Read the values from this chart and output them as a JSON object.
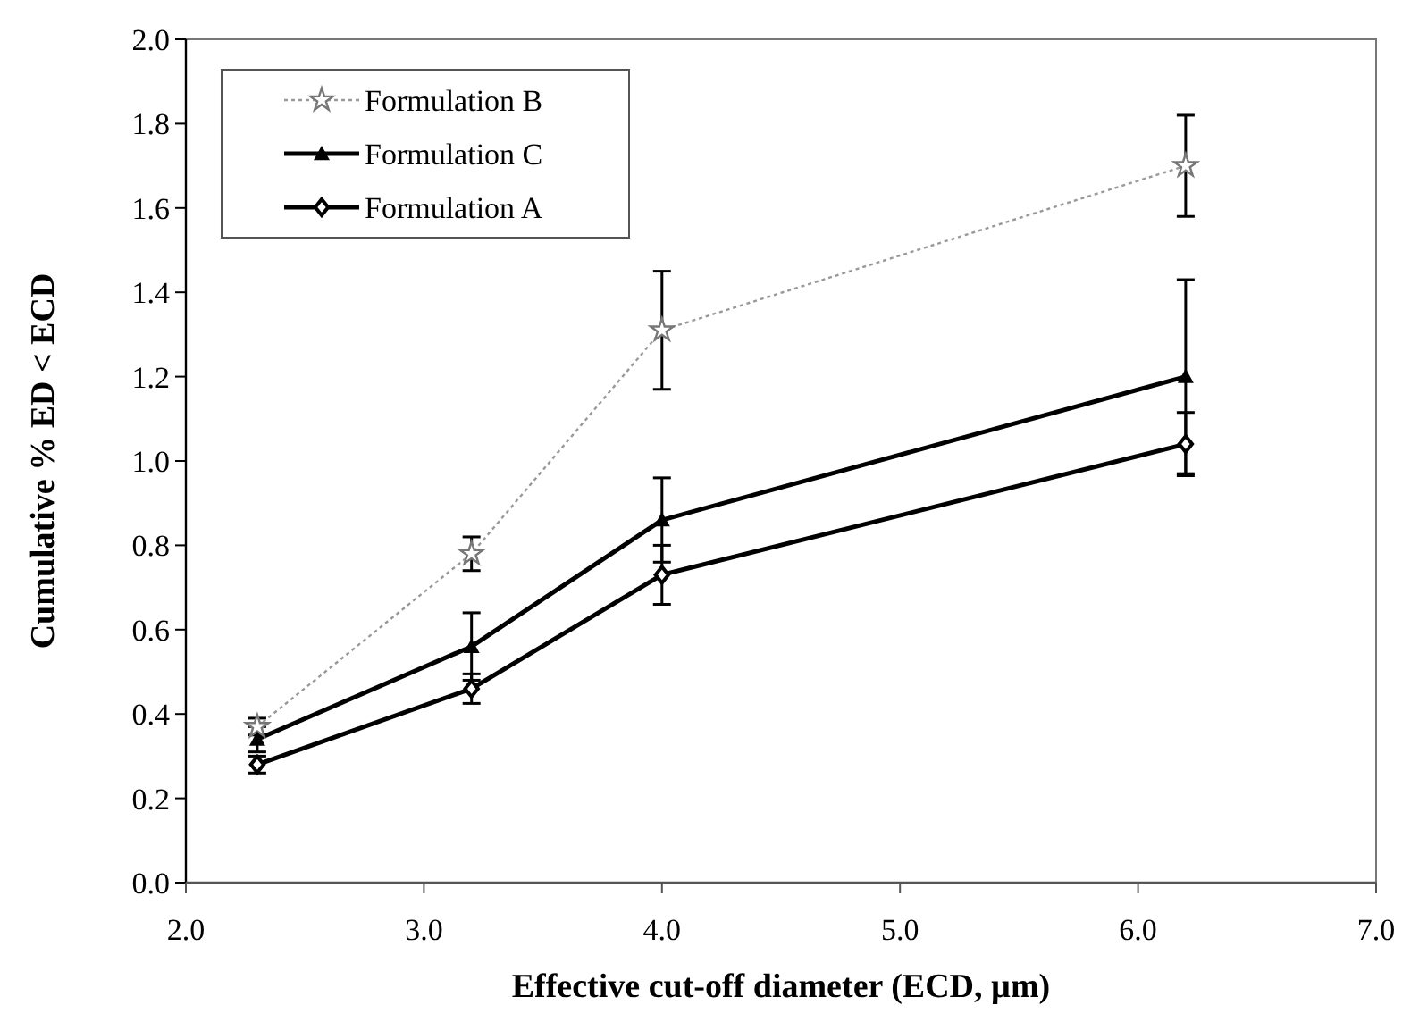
{
  "chart_data": {
    "type": "line",
    "xlabel": "Effective cut-off diameter (ECD, µm)",
    "ylabel": "Cumulative % ED < ECD",
    "x": [
      2.3,
      3.2,
      4.0,
      6.2
    ],
    "xlim": [
      2.0,
      7.0
    ],
    "xticks": [
      {
        "value": 2,
        "label": "2.0"
      },
      {
        "value": 3,
        "label": "3.0"
      },
      {
        "value": 4,
        "label": "4.0"
      },
      {
        "value": 5,
        "label": "5.0"
      },
      {
        "value": 6,
        "label": "6.0"
      },
      {
        "value": 7,
        "label": "7.0"
      }
    ],
    "ylim": [
      0,
      2.0
    ],
    "yticks": [
      {
        "value": 0,
        "label": "0.0"
      },
      {
        "value": 0.2,
        "label": "0.2"
      },
      {
        "value": 0.4,
        "label": "0.4"
      },
      {
        "value": 0.6,
        "label": "0.6"
      },
      {
        "value": 0.8,
        "label": "0.8"
      },
      {
        "value": 1,
        "label": "1.0"
      },
      {
        "value": 1.2,
        "label": "1.2"
      },
      {
        "value": 1.4,
        "label": "1.4"
      },
      {
        "value": 1.6,
        "label": "1.6"
      },
      {
        "value": 1.8,
        "label": "1.8"
      },
      {
        "value": 2,
        "label": "2.0"
      }
    ],
    "grid": false,
    "legend": "top left",
    "series": [
      {
        "name": "Formulation B",
        "color": "#999999",
        "marker": "star",
        "line_style": "dotted",
        "values": [
          0.37,
          0.78,
          1.31,
          1.7
        ],
        "errors": [
          0.02,
          0.04,
          0.14,
          0.12
        ]
      },
      {
        "name": "Formulation C",
        "color": "#000000",
        "marker": "triangle",
        "line_style": "solid",
        "values": [
          0.34,
          0.56,
          0.86,
          1.2
        ],
        "errors": [
          0.03,
          0.08,
          0.1,
          0.23
        ]
      },
      {
        "name": "Formulation A",
        "color": "#000000",
        "marker": "diamond",
        "line_style": "solid",
        "values": [
          0.28,
          0.46,
          0.73,
          1.04
        ],
        "errors": [
          0.02,
          0.035,
          0.07,
          0.075
        ]
      }
    ]
  }
}
